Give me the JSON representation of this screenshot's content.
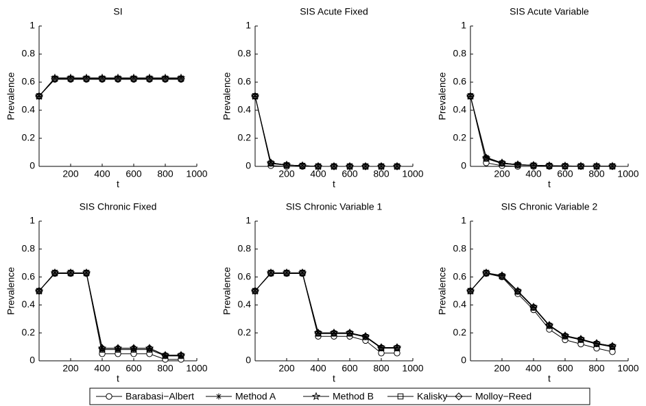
{
  "chart_data": [
    {
      "type": "line",
      "title": "SI",
      "xlabel": "t",
      "ylabel": "Prevalence",
      "x": [
        0,
        100,
        200,
        300,
        400,
        500,
        600,
        700,
        800,
        900
      ],
      "xlim": [
        0,
        1000
      ],
      "xticks": [
        200,
        400,
        600,
        800,
        1000
      ],
      "ylim": [
        0,
        1
      ],
      "yticks": [
        0,
        0.2,
        0.4,
        0.6,
        0.8,
        1
      ],
      "series": [
        {
          "color": "#000000",
          "values": [
            0.5,
            0.62,
            0.62,
            0.62,
            0.62,
            0.62,
            0.62,
            0.62,
            0.62,
            0.62
          ]
        },
        {
          "color": "#000000",
          "values": [
            0.5,
            0.63,
            0.63,
            0.63,
            0.63,
            0.63,
            0.63,
            0.63,
            0.63,
            0.63
          ]
        },
        {
          "color": "#000000",
          "values": [
            0.5,
            0.63,
            0.63,
            0.63,
            0.63,
            0.63,
            0.63,
            0.63,
            0.63,
            0.63
          ]
        },
        {
          "color": "#000000",
          "values": [
            0.5,
            0.625,
            0.625,
            0.625,
            0.625,
            0.625,
            0.625,
            0.625,
            0.625,
            0.625
          ]
        },
        {
          "color": "#000000",
          "values": [
            0.5,
            0.625,
            0.625,
            0.625,
            0.625,
            0.625,
            0.625,
            0.625,
            0.625,
            0.625
          ]
        }
      ]
    },
    {
      "type": "line",
      "title": "SIS Acute Fixed",
      "xlabel": "t",
      "ylabel": "Prevalence",
      "x": [
        0,
        100,
        200,
        300,
        400,
        500,
        600,
        700,
        800,
        900
      ],
      "xlim": [
        0,
        1000
      ],
      "xticks": [
        200,
        400,
        600,
        800,
        1000
      ],
      "ylim": [
        0,
        1
      ],
      "yticks": [
        0,
        0.2,
        0.4,
        0.6,
        0.8,
        1
      ],
      "series": [
        {
          "color": "#000000",
          "values": [
            0.5,
            0.005,
            0,
            0,
            0,
            0,
            0,
            0,
            0,
            0
          ]
        },
        {
          "color": "#000000",
          "values": [
            0.5,
            0.025,
            0.01,
            0.005,
            0,
            0,
            0,
            0,
            0,
            0
          ]
        },
        {
          "color": "#000000",
          "values": [
            0.5,
            0.025,
            0.01,
            0.005,
            0,
            0,
            0,
            0,
            0,
            0
          ]
        },
        {
          "color": "#000000",
          "values": [
            0.5,
            0.02,
            0.008,
            0.004,
            0,
            0,
            0,
            0,
            0,
            0
          ]
        },
        {
          "color": "#000000",
          "values": [
            0.5,
            0.025,
            0.01,
            0.005,
            0,
            0,
            0,
            0,
            0,
            0
          ]
        }
      ]
    },
    {
      "type": "line",
      "title": "SIS Acute Variable",
      "xlabel": "t",
      "ylabel": "Prevalence",
      "x": [
        0,
        100,
        200,
        300,
        400,
        500,
        600,
        700,
        800,
        900
      ],
      "xlim": [
        0,
        1000
      ],
      "xticks": [
        200,
        400,
        600,
        800,
        1000
      ],
      "ylim": [
        0,
        1
      ],
      "yticks": [
        0,
        0.2,
        0.4,
        0.6,
        0.8,
        1
      ],
      "series": [
        {
          "color": "#000000",
          "values": [
            0.5,
            0.025,
            0.005,
            0,
            0,
            0,
            0,
            0,
            0,
            0
          ]
        },
        {
          "color": "#000000",
          "values": [
            0.5,
            0.065,
            0.025,
            0.012,
            0.008,
            0.005,
            0.003,
            0.002,
            0.001,
            0.001
          ]
        },
        {
          "color": "#000000",
          "values": [
            0.5,
            0.06,
            0.025,
            0.012,
            0.008,
            0.005,
            0.003,
            0.002,
            0.001,
            0.001
          ]
        },
        {
          "color": "#000000",
          "values": [
            0.5,
            0.055,
            0.02,
            0.01,
            0.006,
            0.004,
            0.002,
            0.001,
            0.001,
            0.001
          ]
        },
        {
          "color": "#000000",
          "values": [
            0.5,
            0.06,
            0.025,
            0.012,
            0.008,
            0.005,
            0.003,
            0.002,
            0.001,
            0.001
          ]
        }
      ]
    },
    {
      "type": "line",
      "title": "SIS Chronic Fixed",
      "xlabel": "t",
      "ylabel": "Prevalence",
      "x": [
        0,
        100,
        200,
        300,
        400,
        500,
        600,
        700,
        800,
        900
      ],
      "xlim": [
        0,
        1000
      ],
      "xticks": [
        200,
        400,
        600,
        800,
        1000
      ],
      "ylim": [
        0,
        1
      ],
      "yticks": [
        0,
        0.2,
        0.4,
        0.6,
        0.8,
        1
      ],
      "series": [
        {
          "color": "#000000",
          "values": [
            0.5,
            0.625,
            0.625,
            0.625,
            0.05,
            0.05,
            0.05,
            0.05,
            0.01,
            0.01
          ]
        },
        {
          "color": "#000000",
          "values": [
            0.5,
            0.63,
            0.63,
            0.63,
            0.09,
            0.09,
            0.09,
            0.09,
            0.04,
            0.04
          ]
        },
        {
          "color": "#000000",
          "values": [
            0.5,
            0.63,
            0.63,
            0.63,
            0.09,
            0.09,
            0.09,
            0.09,
            0.04,
            0.04
          ]
        },
        {
          "color": "#000000",
          "values": [
            0.5,
            0.63,
            0.63,
            0.63,
            0.08,
            0.08,
            0.08,
            0.08,
            0.035,
            0.035
          ]
        },
        {
          "color": "#000000",
          "values": [
            0.5,
            0.63,
            0.63,
            0.63,
            0.09,
            0.09,
            0.09,
            0.09,
            0.04,
            0.04
          ]
        }
      ]
    },
    {
      "type": "line",
      "title": "SIS Chronic Variable 1",
      "xlabel": "t",
      "ylabel": "Prevalence",
      "x": [
        0,
        100,
        200,
        300,
        400,
        500,
        600,
        700,
        800,
        900
      ],
      "xlim": [
        0,
        1000
      ],
      "xticks": [
        200,
        400,
        600,
        800,
        1000
      ],
      "ylim": [
        0,
        1
      ],
      "yticks": [
        0,
        0.2,
        0.4,
        0.6,
        0.8,
        1
      ],
      "series": [
        {
          "color": "#000000",
          "values": [
            0.5,
            0.625,
            0.625,
            0.625,
            0.175,
            0.175,
            0.175,
            0.145,
            0.055,
            0.055
          ]
        },
        {
          "color": "#000000",
          "values": [
            0.5,
            0.63,
            0.63,
            0.63,
            0.2,
            0.2,
            0.2,
            0.175,
            0.095,
            0.095
          ]
        },
        {
          "color": "#000000",
          "values": [
            0.5,
            0.63,
            0.63,
            0.63,
            0.2,
            0.2,
            0.2,
            0.175,
            0.095,
            0.095
          ]
        },
        {
          "color": "#000000",
          "values": [
            0.5,
            0.63,
            0.63,
            0.63,
            0.195,
            0.195,
            0.195,
            0.17,
            0.09,
            0.09
          ]
        },
        {
          "color": "#000000",
          "values": [
            0.5,
            0.63,
            0.63,
            0.63,
            0.2,
            0.2,
            0.2,
            0.175,
            0.095,
            0.095
          ]
        }
      ]
    },
    {
      "type": "line",
      "title": "SIS Chronic Variable 2",
      "xlabel": "t",
      "ylabel": "Prevalence",
      "x": [
        0,
        100,
        200,
        300,
        400,
        500,
        600,
        700,
        800,
        900
      ],
      "xlim": [
        0,
        1000
      ],
      "xticks": [
        200,
        400,
        600,
        800,
        1000
      ],
      "ylim": [
        0,
        1
      ],
      "yticks": [
        0,
        0.2,
        0.4,
        0.6,
        0.8,
        1
      ],
      "series": [
        {
          "color": "#000000",
          "values": [
            0.5,
            0.625,
            0.6,
            0.48,
            0.365,
            0.225,
            0.15,
            0.12,
            0.09,
            0.065
          ]
        },
        {
          "color": "#000000",
          "values": [
            0.5,
            0.63,
            0.61,
            0.5,
            0.385,
            0.255,
            0.18,
            0.155,
            0.125,
            0.105
          ]
        },
        {
          "color": "#000000",
          "values": [
            0.5,
            0.63,
            0.61,
            0.5,
            0.385,
            0.255,
            0.18,
            0.155,
            0.125,
            0.105
          ]
        },
        {
          "color": "#000000",
          "values": [
            0.5,
            0.63,
            0.605,
            0.495,
            0.38,
            0.25,
            0.175,
            0.15,
            0.12,
            0.1
          ]
        },
        {
          "color": "#000000",
          "values": [
            0.5,
            0.63,
            0.61,
            0.5,
            0.385,
            0.255,
            0.18,
            0.155,
            0.125,
            0.105
          ]
        }
      ]
    }
  ],
  "legend": [
    {
      "name": "Barabasi−Albert",
      "marker": "circle"
    },
    {
      "name": "Method A",
      "marker": "asterisk"
    },
    {
      "name": "Method B",
      "marker": "star"
    },
    {
      "name": "Kalisky",
      "marker": "square"
    },
    {
      "name": "Molloy−Reed",
      "marker": "diamond"
    }
  ]
}
